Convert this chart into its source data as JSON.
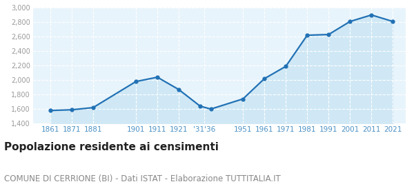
{
  "years": [
    1861,
    1871,
    1881,
    1901,
    1911,
    1921,
    1931,
    1936,
    1951,
    1961,
    1971,
    1981,
    1991,
    2001,
    2011,
    2021
  ],
  "population": [
    1580,
    1590,
    1620,
    1980,
    2040,
    1870,
    1640,
    1600,
    1740,
    2020,
    2190,
    2620,
    2630,
    2810,
    2900,
    2810
  ],
  "yticks": [
    1400,
    1600,
    1800,
    2000,
    2200,
    2400,
    2600,
    2800,
    3000
  ],
  "ylim": [
    1400,
    3000
  ],
  "xlim": [
    1853,
    2027
  ],
  "line_color": "#2171b5",
  "fill_color": "#d0e8f5",
  "marker_color": "#2171b5",
  "bg_color": "#e8f4fb",
  "grid_color": "#ffffff",
  "tick_label_color": "#4a90c4",
  "ytick_label_color": "#999999",
  "title": "Popolazione residente ai censimenti",
  "subtitle": "COMUNE DI CERRIONE (BI) - Dati ISTAT - Elaborazione TUTTITALIA.IT",
  "title_fontsize": 11,
  "subtitle_fontsize": 8.5,
  "xtick_positions": [
    1861,
    1871,
    1881,
    1901,
    1911,
    1921,
    1933,
    1951,
    1961,
    1971,
    1981,
    1991,
    2001,
    2011,
    2021
  ],
  "xtick_labels": [
    "1861",
    "1871",
    "1881",
    "1901",
    "1911",
    "1921",
    "'31'36",
    "1951",
    "1961",
    "1971",
    "1981",
    "1991",
    "2001",
    "2011",
    "2021"
  ]
}
